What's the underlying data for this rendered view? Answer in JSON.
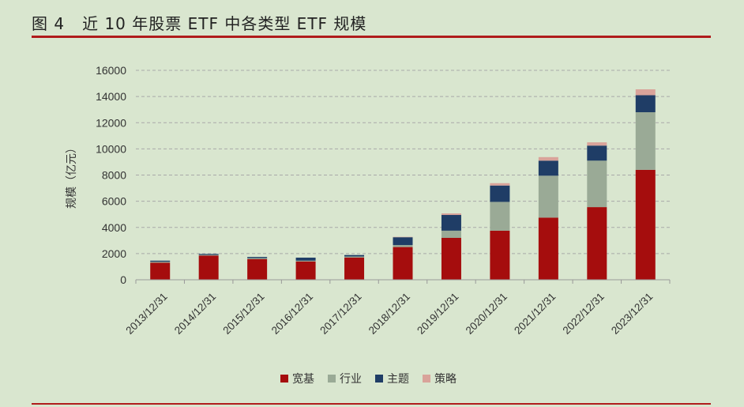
{
  "title": {
    "figure_number": "图 4",
    "text": "近 10 年股票 ETF 中各类型 ETF 规模"
  },
  "chart_data": {
    "type": "bar",
    "stacked": true,
    "categories": [
      "2013/12/31",
      "2014/12/31",
      "2015/12/31",
      "2016/12/31",
      "2017/12/31",
      "2018/12/31",
      "2019/12/31",
      "2020/12/31",
      "2021/12/31",
      "2022/12/31",
      "2023/12/31"
    ],
    "series": [
      {
        "name": "宽基",
        "color": "#a50d0d",
        "values": [
          1300,
          1850,
          1580,
          1400,
          1700,
          2500,
          3200,
          3750,
          4750,
          5550,
          8400
        ]
      },
      {
        "name": "行业",
        "color": "#9aaa96",
        "values": [
          80,
          50,
          70,
          60,
          80,
          150,
          550,
          2200,
          3200,
          3550,
          4400
        ]
      },
      {
        "name": "主题",
        "color": "#1f3d66",
        "values": [
          80,
          70,
          90,
          230,
          110,
          600,
          1200,
          1250,
          1150,
          1150,
          1300
        ]
      },
      {
        "name": "策略",
        "color": "#d9a39a",
        "values": [
          0,
          0,
          0,
          0,
          0,
          30,
          120,
          180,
          270,
          250,
          450
        ]
      }
    ],
    "ylabel": "规模（亿元）",
    "ylim": [
      0,
      16000
    ],
    "yticks": [
      0,
      2000,
      4000,
      6000,
      8000,
      10000,
      12000,
      14000,
      16000
    ],
    "grid": true,
    "legend_position": "bottom"
  }
}
